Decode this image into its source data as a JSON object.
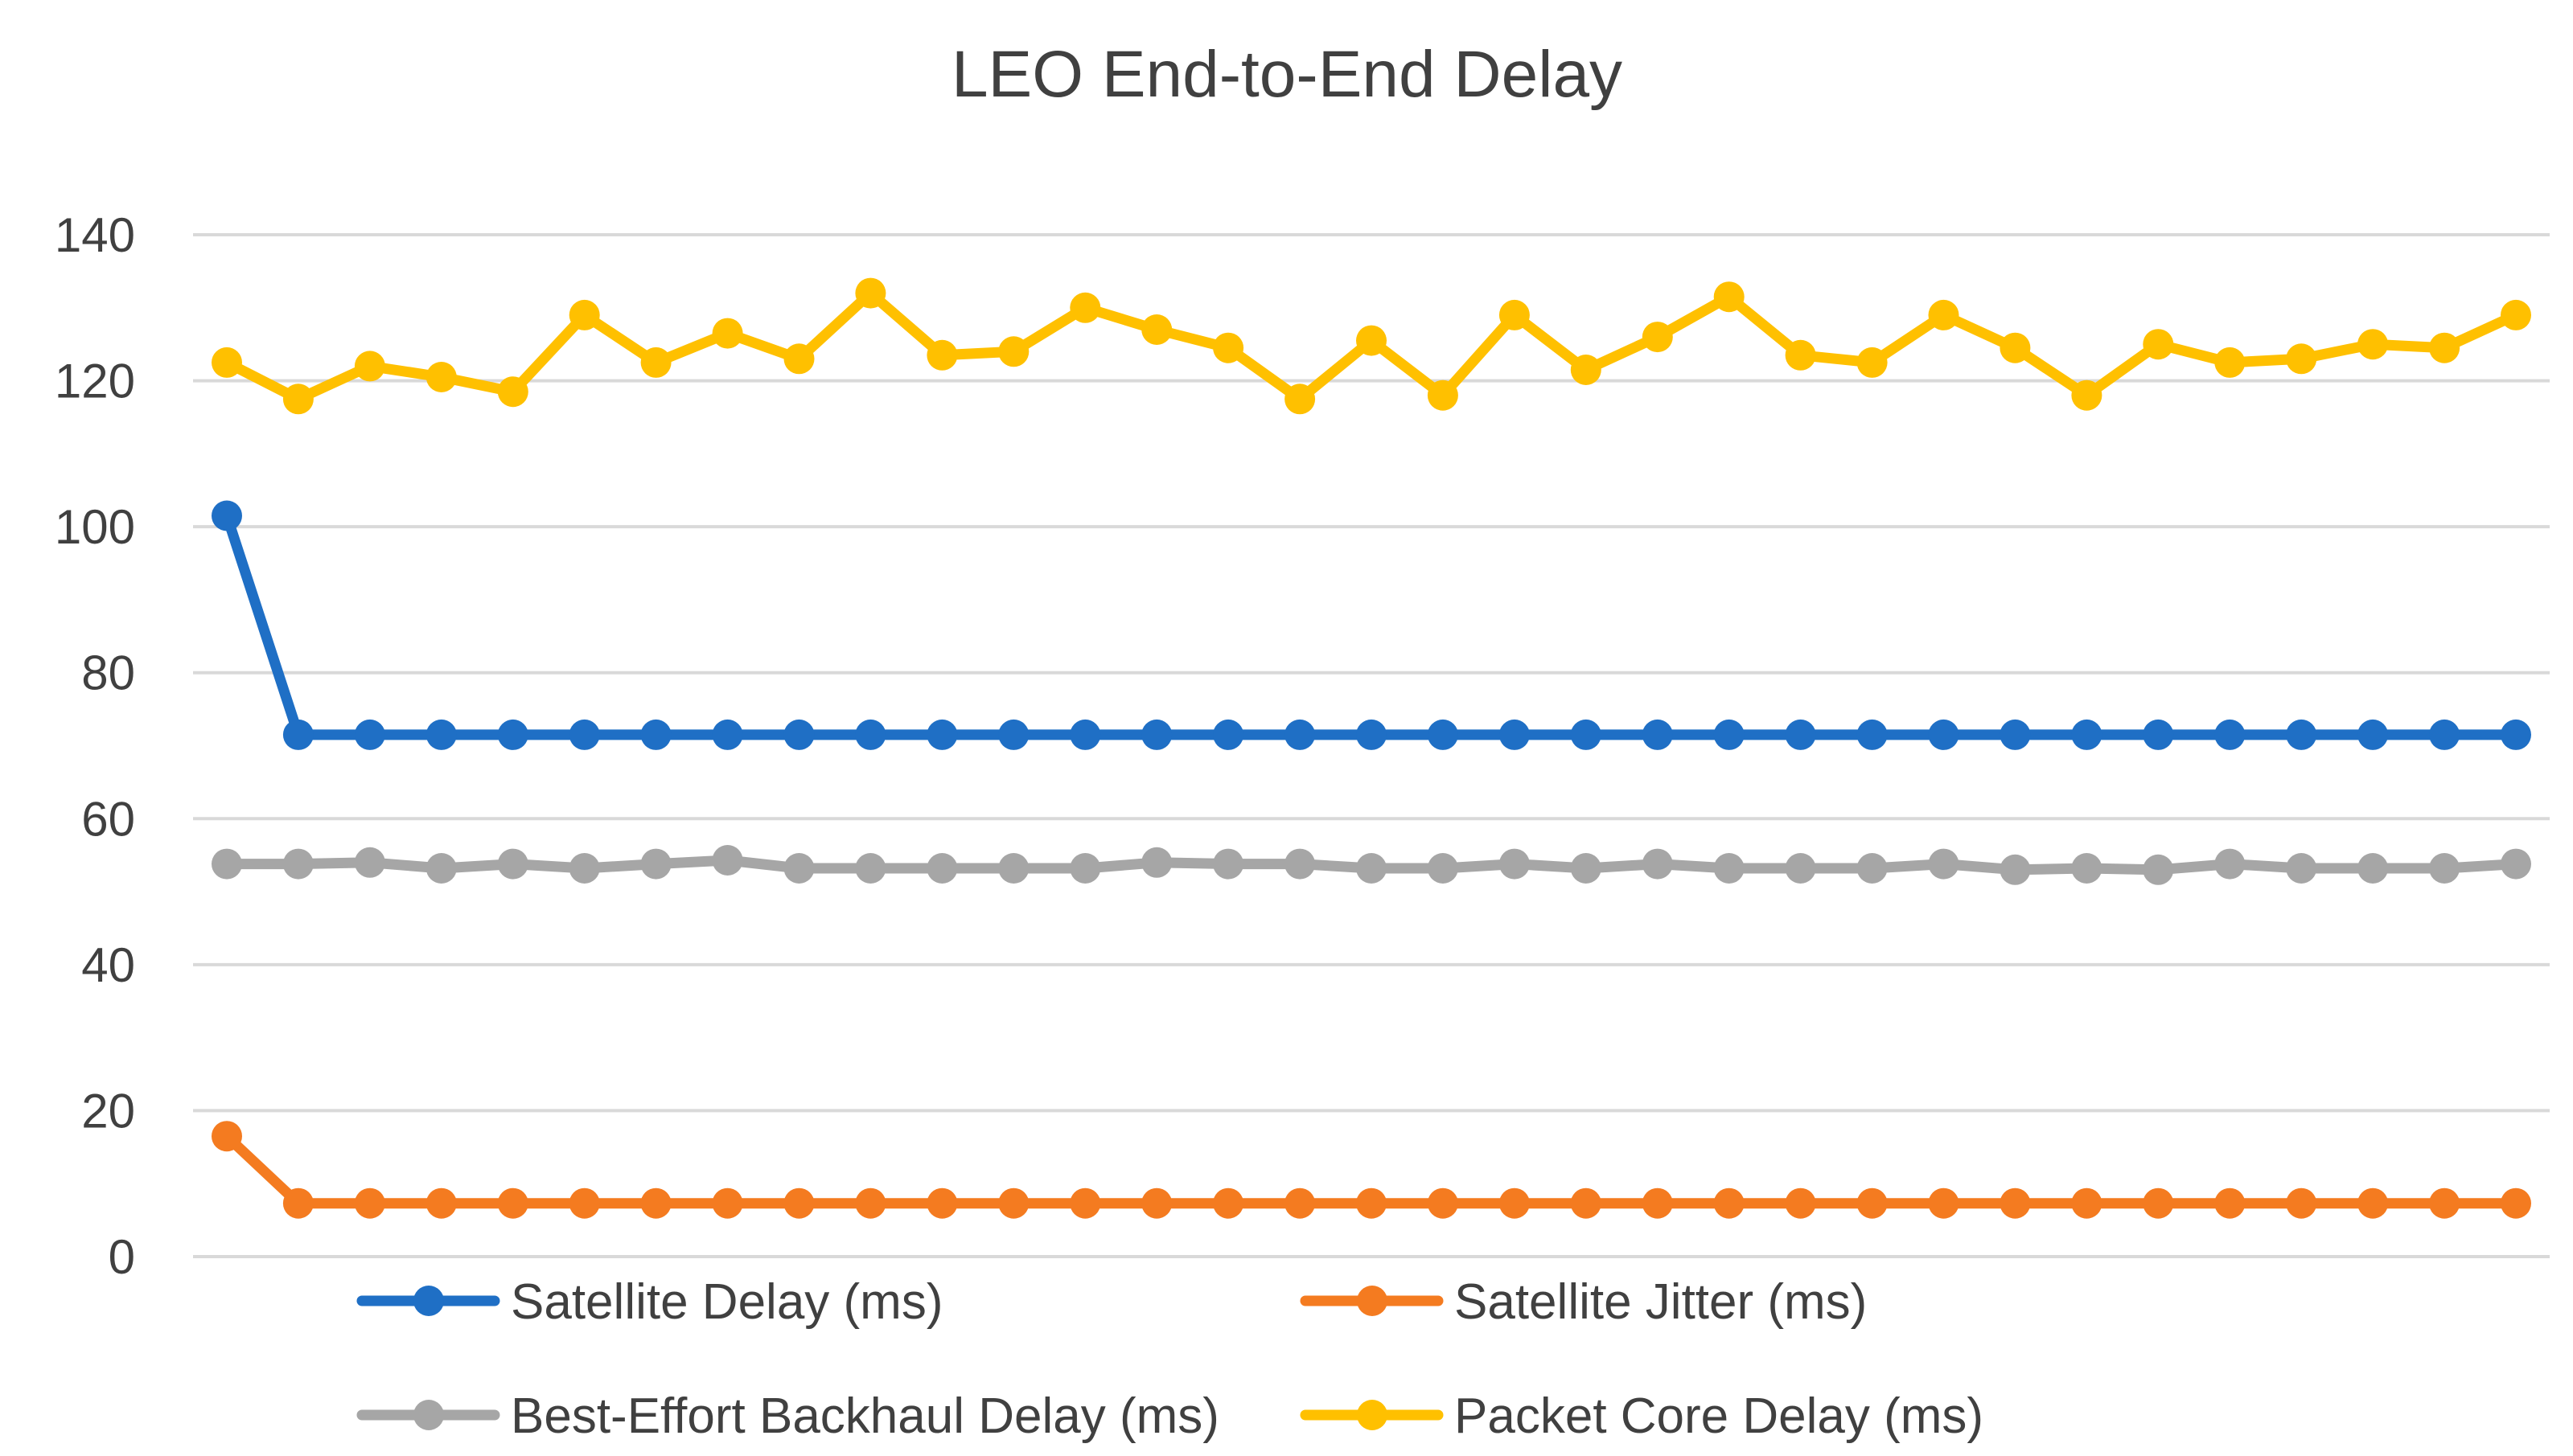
{
  "chart_data": {
    "type": "line",
    "title": "LEO End-to-End Delay",
    "xlabel": "",
    "ylabel": "",
    "ylim": [
      0,
      140
    ],
    "yticks": [
      "0",
      "20",
      "40",
      "60",
      "80",
      "100",
      "120",
      "140"
    ],
    "grid": true,
    "legend_position": "bottom",
    "x": [
      1,
      2,
      3,
      4,
      5,
      6,
      7,
      8,
      9,
      10,
      11,
      12,
      13,
      14,
      15,
      16,
      17,
      18,
      19,
      20,
      21,
      22,
      23,
      24,
      25,
      26,
      27,
      28,
      29,
      30,
      31,
      32,
      33
    ],
    "series": [
      {
        "name": "Satellite Delay (ms)",
        "color": "#1f6fc5",
        "values": [
          101.5,
          71.5,
          71.5,
          71.5,
          71.5,
          71.5,
          71.5,
          71.5,
          71.5,
          71.5,
          71.5,
          71.5,
          71.5,
          71.5,
          71.5,
          71.5,
          71.5,
          71.5,
          71.5,
          71.5,
          71.5,
          71.5,
          71.5,
          71.5,
          71.5,
          71.5,
          71.5,
          71.5,
          71.5,
          71.5,
          71.5,
          71.5,
          71.5
        ]
      },
      {
        "name": "Satellite Jitter (ms)",
        "color": "#f47b20",
        "values": [
          16.5,
          7.3,
          7.3,
          7.3,
          7.3,
          7.3,
          7.3,
          7.3,
          7.3,
          7.3,
          7.3,
          7.3,
          7.3,
          7.3,
          7.3,
          7.3,
          7.3,
          7.3,
          7.3,
          7.3,
          7.3,
          7.3,
          7.3,
          7.3,
          7.3,
          7.3,
          7.3,
          7.3,
          7.3,
          7.3,
          7.3,
          7.3,
          7.3
        ]
      },
      {
        "name": "Best-Effort Backhaul Delay (ms)",
        "color": "#a6a6a6",
        "values": [
          53.8,
          53.8,
          54.0,
          53.2,
          53.8,
          53.2,
          53.8,
          54.3,
          53.2,
          53.2,
          53.2,
          53.2,
          53.2,
          54.0,
          53.8,
          53.8,
          53.2,
          53.2,
          53.8,
          53.2,
          53.8,
          53.2,
          53.2,
          53.2,
          53.8,
          53.0,
          53.2,
          53.0,
          53.8,
          53.2,
          53.2,
          53.2,
          53.8
        ]
      },
      {
        "name": "Packet Core Delay (ms)",
        "color": "#ffc000",
        "values": [
          122.5,
          117.5,
          122.0,
          120.5,
          118.5,
          129.0,
          122.5,
          126.5,
          123.0,
          132.0,
          123.5,
          124.0,
          130.0,
          127.0,
          124.5,
          117.5,
          125.5,
          118.0,
          129.0,
          121.5,
          126.0,
          131.5,
          123.5,
          122.5,
          129.0,
          124.5,
          118.0,
          125.0,
          122.5,
          123.0,
          125.0,
          124.5,
          129.0
        ]
      }
    ]
  }
}
